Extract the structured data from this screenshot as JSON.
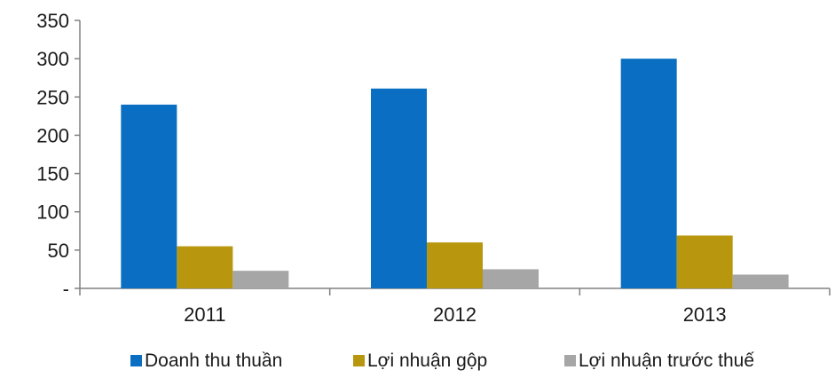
{
  "chart_data": {
    "type": "bar",
    "title": "",
    "xlabel": "",
    "ylabel": "",
    "categories": [
      "2011",
      "2012",
      "2013"
    ],
    "series": [
      {
        "name": "Doanh thu thuần",
        "color": "#0a6fc2",
        "values": [
          240,
          261,
          300
        ]
      },
      {
        "name": "Lợi nhuận gộp",
        "color": "#b8960e",
        "values": [
          55,
          60,
          69
        ]
      },
      {
        "name": "Lợi nhuận trước thuế",
        "color": "#a6a6a6",
        "values": [
          23,
          25,
          18
        ]
      }
    ],
    "ylim": [
      0,
      350
    ],
    "y_ticks": [
      {
        "value": 0,
        "label": "-"
      },
      {
        "value": 50,
        "label": "50"
      },
      {
        "value": 100,
        "label": "100"
      },
      {
        "value": 150,
        "label": "150"
      },
      {
        "value": 200,
        "label": "200"
      },
      {
        "value": 250,
        "label": "250"
      },
      {
        "value": 300,
        "label": "300"
      },
      {
        "value": 350,
        "label": "350"
      }
    ],
    "grid": false,
    "legend_position": "bottom"
  }
}
